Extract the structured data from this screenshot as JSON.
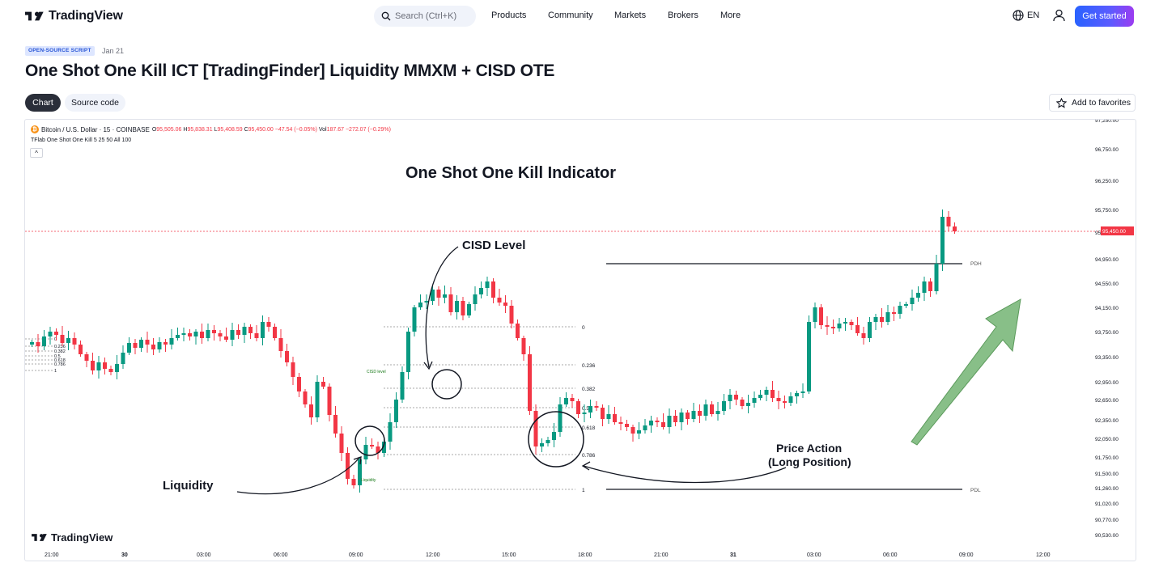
{
  "header": {
    "brand": "TradingView",
    "search_placeholder": "Search (Ctrl+K)",
    "nav": [
      "Products",
      "Community",
      "Markets",
      "Brokers",
      "More"
    ],
    "lang": "EN",
    "cta": "Get started"
  },
  "script": {
    "badge": "OPEN-SOURCE SCRIPT",
    "date": "Jan 21",
    "title": "One Shot One Kill ICT [TradingFinder] Liquidity MMXM + CISD OTE",
    "tabs": {
      "chart": "Chart",
      "source": "Source code"
    },
    "favorite": "Add to favorites"
  },
  "chart_legend": {
    "symbol": "Bitcoin / U.S. Dollar · 15 · COINBASE",
    "o_label": "O",
    "o": "95,505.06",
    "h_label": "H",
    "h": "95,838.31",
    "l_label": "L",
    "l": "95,408.59",
    "c_label": "C",
    "c": "95,450.00",
    "change": "−47.54 (−0.05%)",
    "vol_label": "Vol",
    "vol": "187.67",
    "vol_change": "−272.07 (−0.29%)",
    "indicator": "TFlab One Shot One Kill 5 25 50 All 100",
    "watermark": "TradingView"
  },
  "chart_data": {
    "type": "candlestick",
    "symbol": "BTCUSD",
    "interval": "15",
    "y_ticks": [
      "97,250.00",
      "96,750.00",
      "96,250.00",
      "95,750.00",
      "95,350.00",
      "94,950.00",
      "94,550.00",
      "94,150.00",
      "93,750.00",
      "93,350.00",
      "92,950.00",
      "92,650.00",
      "92,350.00",
      "92,050.00",
      "91,750.00",
      "91,500.00",
      "91,260.00",
      "91,020.00",
      "90,770.00",
      "90,530.00"
    ],
    "x_ticks": [
      "21:00",
      "30",
      "03:00",
      "06:00",
      "09:00",
      "12:00",
      "15:00",
      "18:00",
      "21:00",
      "31",
      "03:00",
      "06:00",
      "09:00",
      "12:00"
    ],
    "last_price": "95,450.00",
    "annotations": {
      "title": "One Shot One Kill Indicator",
      "cisd": "CISD Level",
      "liquidity": "Liquidity",
      "price_action_1": "Price Action",
      "price_action_2": "(Long Position)"
    },
    "fib_labels": [
      "0",
      "0.236",
      "0.382",
      "0.5",
      "0.618",
      "0.786",
      "1"
    ],
    "small_labels": {
      "cisd_small": "CISD level",
      "liquidity_small": "Liquidity",
      "pdh": "PDH",
      "pdl": "PDL"
    },
    "left_fib_labels": [
      "0",
      "0.236",
      "0.382",
      "0.5",
      "0.618",
      "0.786",
      "1"
    ],
    "colors": {
      "up": "#089981",
      "down": "#f23645",
      "arrow": "#6aaf6a"
    }
  }
}
